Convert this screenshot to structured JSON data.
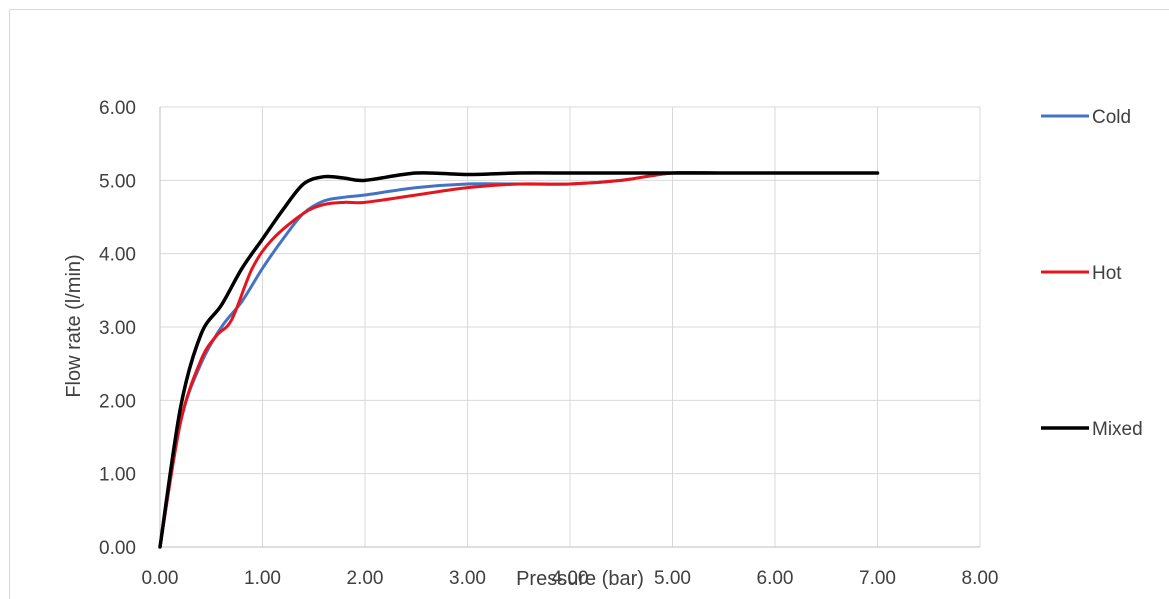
{
  "chart_data": {
    "type": "line",
    "title": "",
    "xlabel": "Pressure (bar)",
    "ylabel": "Flow rate (l/min)",
    "xlim": [
      0,
      8
    ],
    "ylim": [
      0,
      6
    ],
    "x_ticks": [
      "0.00",
      "1.00",
      "2.00",
      "3.00",
      "4.00",
      "5.00",
      "6.00",
      "7.00",
      "8.00"
    ],
    "y_ticks": [
      "0.00",
      "1.00",
      "2.00",
      "3.00",
      "4.00",
      "5.00",
      "6.00"
    ],
    "grid": true,
    "legend_position": "right",
    "series": [
      {
        "name": "Cold",
        "color": "#4472c4",
        "x": [
          0,
          0.2,
          0.4,
          0.6,
          0.8,
          1.0,
          1.2,
          1.4,
          1.6,
          1.8,
          2.0,
          2.5,
          3.0,
          3.5,
          4.0,
          4.5,
          5.0,
          5.5,
          6.0,
          6.5,
          7.0
        ],
        "y": [
          0,
          1.7,
          2.5,
          3.0,
          3.35,
          3.8,
          4.2,
          4.55,
          4.72,
          4.77,
          4.8,
          4.9,
          4.95,
          4.95,
          4.95,
          5.0,
          5.1,
          5.1,
          5.1,
          5.1,
          5.1
        ]
      },
      {
        "name": "Hot",
        "color": "#e8141c",
        "x": [
          0,
          0.2,
          0.4,
          0.55,
          0.7,
          0.9,
          1.1,
          1.4,
          1.6,
          1.8,
          2.0,
          2.5,
          3.0,
          3.5,
          4.0,
          4.5,
          5.0,
          5.5,
          6.0,
          6.5,
          7.0
        ],
        "y": [
          0,
          1.7,
          2.55,
          2.88,
          3.1,
          3.8,
          4.2,
          4.55,
          4.67,
          4.7,
          4.7,
          4.8,
          4.9,
          4.95,
          4.95,
          5.0,
          5.1,
          5.1,
          5.1,
          5.1,
          5.1
        ]
      },
      {
        "name": "Mixed",
        "color": "#000000",
        "x": [
          0,
          0.2,
          0.4,
          0.6,
          0.8,
          1.0,
          1.2,
          1.4,
          1.6,
          1.8,
          2.0,
          2.5,
          3.0,
          3.5,
          4.0,
          4.5,
          5.0,
          5.5,
          6.0,
          6.5,
          7.0
        ],
        "y": [
          0,
          1.9,
          2.9,
          3.3,
          3.8,
          4.2,
          4.6,
          4.95,
          5.05,
          5.03,
          5.0,
          5.1,
          5.08,
          5.1,
          5.1,
          5.1,
          5.1,
          5.1,
          5.1,
          5.1,
          5.1
        ]
      }
    ]
  }
}
